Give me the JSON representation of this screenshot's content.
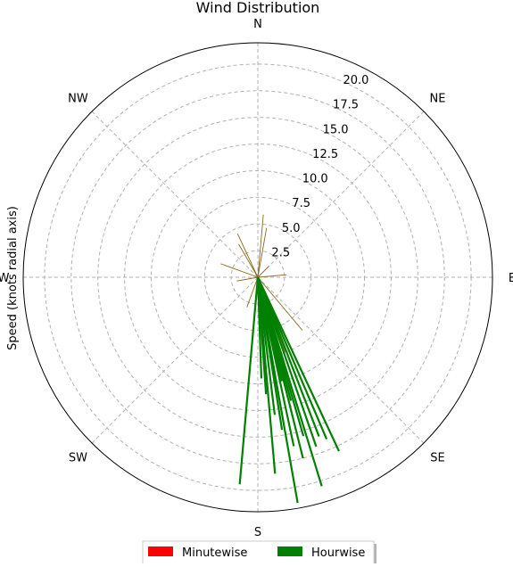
{
  "chart_data": {
    "type": "polar-bar",
    "title": "Wind Distribution",
    "ylabel": "Speed (knots radial axis)",
    "direction_labels": [
      "N",
      "NE",
      "E",
      "SE",
      "S",
      "SW",
      "W",
      "NW"
    ],
    "r_ticks": [
      "2.5",
      "5.0",
      "7.5",
      "10.0",
      "12.5",
      "15.0",
      "17.5",
      "20.0"
    ],
    "rlim": [
      0,
      22
    ],
    "grid": true,
    "legend_position": "bottom-center",
    "series": [
      {
        "name": "Minutewise",
        "color": "#ff0000",
        "points": [
          {
            "direction_deg": 5,
            "speed": 5.9
          },
          {
            "direction_deg": 10,
            "speed": 4.7
          },
          {
            "direction_deg": 335,
            "speed": 4.5
          },
          {
            "direction_deg": 330,
            "speed": 3.6
          },
          {
            "direction_deg": 290,
            "speed": 3.7
          },
          {
            "direction_deg": 85,
            "speed": 2.7
          },
          {
            "direction_deg": 140,
            "speed": 6.5
          },
          {
            "direction_deg": 160,
            "speed": 7.5
          },
          {
            "direction_deg": 200,
            "speed": 3.0
          },
          {
            "direction_deg": 260,
            "speed": 2.0
          },
          {
            "direction_deg": 45,
            "speed": 1.5
          }
        ]
      },
      {
        "name": "Hourwise",
        "color": "#008000",
        "points": [
          {
            "direction_deg": 163,
            "speed": 20.5
          },
          {
            "direction_deg": 170,
            "speed": 21.5
          },
          {
            "direction_deg": 175,
            "speed": 18.5
          },
          {
            "direction_deg": 185,
            "speed": 19.5
          },
          {
            "direction_deg": 155,
            "speed": 18.0
          },
          {
            "direction_deg": 157,
            "speed": 16.5
          },
          {
            "direction_deg": 159,
            "speed": 16.0
          },
          {
            "direction_deg": 161,
            "speed": 16.8
          },
          {
            "direction_deg": 164,
            "speed": 15.5
          },
          {
            "direction_deg": 166,
            "speed": 17.5
          },
          {
            "direction_deg": 168,
            "speed": 16.2
          },
          {
            "direction_deg": 171,
            "speed": 14.5
          },
          {
            "direction_deg": 173,
            "speed": 13.0
          },
          {
            "direction_deg": 176,
            "speed": 11.0
          },
          {
            "direction_deg": 178,
            "speed": 9.5
          },
          {
            "direction_deg": 165,
            "speed": 12.0
          },
          {
            "direction_deg": 167,
            "speed": 10.0
          }
        ]
      }
    ]
  }
}
